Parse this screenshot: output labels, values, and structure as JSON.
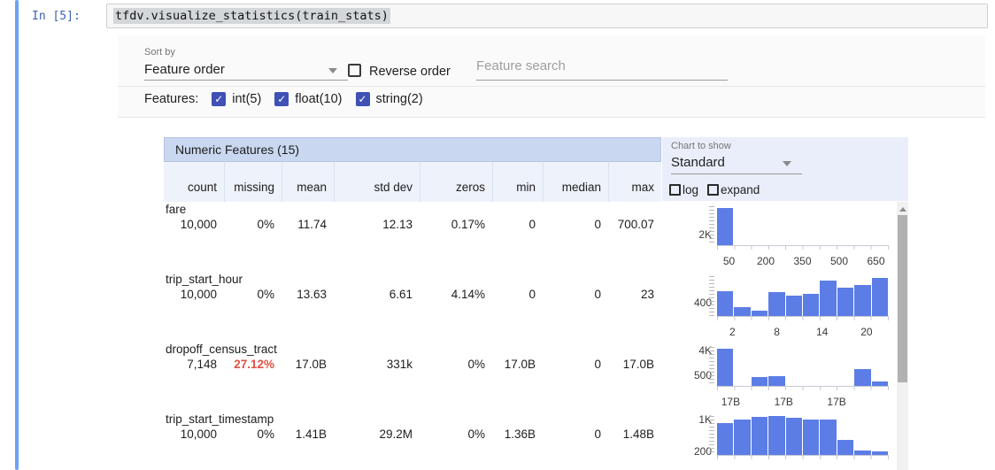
{
  "notebook": {
    "prompt": "In [5]:",
    "code": "tfdv.visualize_statistics(train_stats)"
  },
  "controls": {
    "sort_by_label": "Sort by",
    "sort_by_value": "Feature order",
    "reverse_order_label": "Reverse order",
    "search_placeholder": "Feature search",
    "features_label": "Features:",
    "feature_filters": [
      {
        "label": "int(5)",
        "checked": true
      },
      {
        "label": "float(10)",
        "checked": true
      },
      {
        "label": "string(2)",
        "checked": true
      }
    ]
  },
  "table": {
    "title": "Numeric Features (15)",
    "columns": [
      "count",
      "missing",
      "mean",
      "std dev",
      "zeros",
      "min",
      "median",
      "max"
    ],
    "rows": [
      {
        "feature": "fare",
        "values": [
          "10,000",
          "0%",
          "11.74",
          "12.13",
          "0.17%",
          "0",
          "0",
          "700.07"
        ],
        "missing_alert": false
      },
      {
        "feature": "trip_start_hour",
        "values": [
          "10,000",
          "0%",
          "13.63",
          "6.61",
          "4.14%",
          "0",
          "0",
          "23"
        ],
        "missing_alert": false
      },
      {
        "feature": "dropoff_census_tract",
        "values": [
          "7,148",
          "27.12%",
          "17.0B",
          "331k",
          "0%",
          "17.0B",
          "0",
          "17.0B"
        ],
        "missing_alert": true
      },
      {
        "feature": "trip_start_timestamp",
        "values": [
          "10,000",
          "0%",
          "1.41B",
          "29.2M",
          "0%",
          "1.36B",
          "0",
          "1.48B"
        ],
        "missing_alert": false
      }
    ]
  },
  "chart_panel": {
    "label": "Chart to show",
    "value": "Standard",
    "log_label": "log",
    "expand_label": "expand"
  },
  "chart_data": [
    {
      "type": "bar",
      "feature": "fare",
      "bins": 10,
      "bar_heights_pct": [
        95,
        0,
        0,
        0,
        0,
        0,
        0,
        0,
        0,
        0
      ],
      "y_axis_labels": [
        {
          "text": "2K",
          "pct_from_bottom": 27
        }
      ],
      "x_axis_labels": [
        {
          "text": "50",
          "pos_pct": 7
        },
        {
          "text": "200",
          "pos_pct": 28.5
        },
        {
          "text": "350",
          "pos_pct": 50
        },
        {
          "text": "500",
          "pos_pct": 71.5
        },
        {
          "text": "650",
          "pos_pct": 93
        }
      ]
    },
    {
      "type": "bar",
      "feature": "trip_start_hour",
      "bins": 10,
      "bar_heights_pct": [
        62,
        22,
        13,
        60,
        51,
        56,
        89,
        71,
        78,
        96
      ],
      "y_axis_labels": [
        {
          "text": "400",
          "pct_from_bottom": 33
        }
      ],
      "x_axis_labels": [
        {
          "text": "2",
          "pos_pct": 9
        },
        {
          "text": "8",
          "pos_pct": 35
        },
        {
          "text": "14",
          "pos_pct": 61.5
        },
        {
          "text": "20",
          "pos_pct": 87.5
        }
      ]
    },
    {
      "type": "bar",
      "feature": "dropoff_census_tract",
      "bins": 10,
      "bar_heights_pct": [
        95,
        0,
        23,
        25,
        0,
        0,
        0,
        0,
        43,
        11
      ],
      "y_axis_labels": [
        {
          "text": "4K",
          "pct_from_bottom": 91
        },
        {
          "text": "500",
          "pct_from_bottom": 27
        }
      ],
      "x_axis_labels": [
        {
          "text": "17B",
          "pos_pct": 8
        },
        {
          "text": "17B",
          "pos_pct": 39
        },
        {
          "text": "17B",
          "pos_pct": 70
        }
      ]
    },
    {
      "type": "bar",
      "feature": "trip_start_timestamp",
      "bins": 10,
      "bar_heights_pct": [
        82,
        91,
        98,
        100,
        95,
        91,
        91,
        39,
        11,
        9
      ],
      "y_axis_labels": [
        {
          "text": "1K",
          "pct_from_bottom": 91
        },
        {
          "text": "200",
          "pct_from_bottom": 9
        }
      ],
      "x_axis_labels": []
    }
  ],
  "colors": {
    "bar_blue": "#5c7de6",
    "checkbox_indigo": "#3f51b5",
    "missing_alert_red": "#e25041",
    "table_title_bg": "#c9d8f0",
    "header_row_bg": "#edf2fb",
    "chart_panel_bg": "#e9eefa",
    "cell_indicator_blue": "#6ba1f3"
  }
}
